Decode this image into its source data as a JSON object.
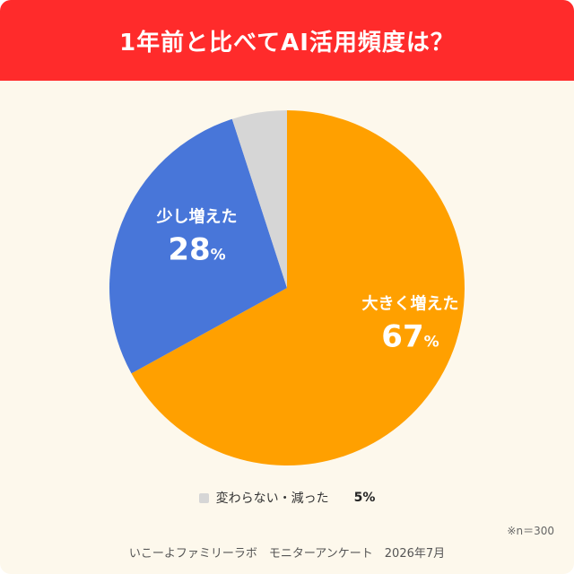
{
  "header": {
    "title": "1年前と比べてAI活用頻度は？",
    "background": "#ff2b2b"
  },
  "chart_data": {
    "type": "pie",
    "title": "1年前と比べてAI活用頻度は？",
    "start_angle_deg": 0,
    "direction": "clockwise",
    "slices": [
      {
        "label": "大きく増えた",
        "value": 67,
        "value_label": "67",
        "unit": "%",
        "color": "#ffa000"
      },
      {
        "label": "少し増えた",
        "value": 28,
        "value_label": "28",
        "unit": "%",
        "color": "#4876d9"
      },
      {
        "label": "変わらない・減った",
        "value": 5,
        "value_label": "5%",
        "unit": "%",
        "color": "#d6d6d6"
      }
    ],
    "legend": {
      "placement": "bottom",
      "entries": [
        {
          "label": "変わらない・減った",
          "value_label": "5%",
          "color": "#d6d6d6"
        }
      ]
    }
  },
  "note": "※n＝300",
  "footer": "いこーよファミリーラボ　モニターアンケート　2026年7月",
  "colors": {
    "card_background": "#fdf8ec",
    "page_background": "#ffffff"
  }
}
